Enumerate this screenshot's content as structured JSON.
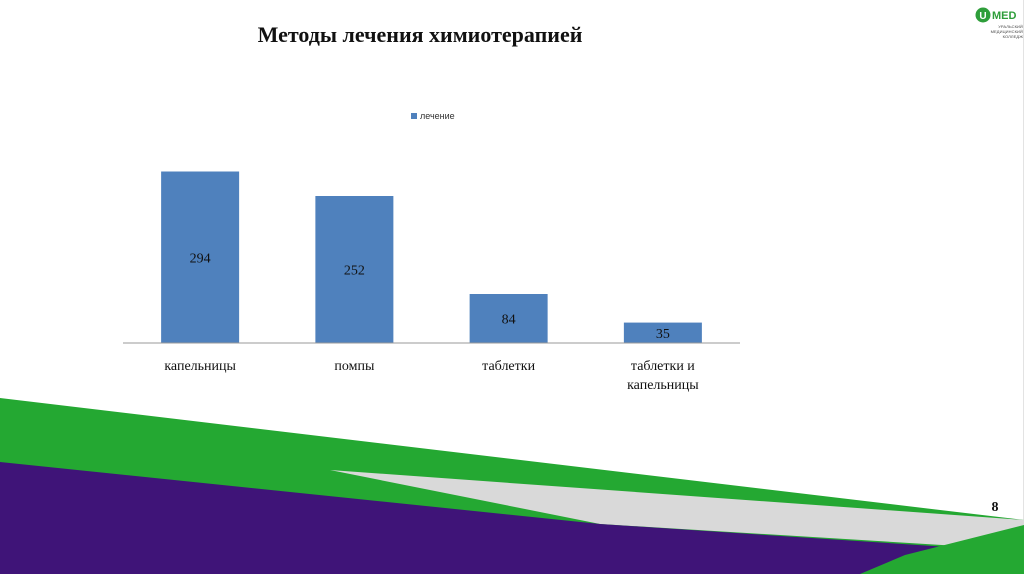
{
  "slide": {
    "title": "Методы лечения химиотерапией",
    "page_number": "8",
    "logo": {
      "brand": "U-MED",
      "subtitle_lines": [
        "УРАЛЬСКИЙ",
        "МЕДИЦИНСКИЙ",
        "КОЛЛЕДЖ"
      ]
    },
    "colors": {
      "bar": "#4f81bd",
      "green": "#24a832",
      "purple": "#3f1478",
      "grey": "#d9d9d9"
    }
  },
  "chart_data": {
    "type": "bar",
    "title": "",
    "xlabel": "",
    "ylabel": "",
    "legend": "top",
    "grid": false,
    "categories": [
      "капельницы",
      "помпы",
      "таблетки",
      "таблетки и капельницы"
    ],
    "series": [
      {
        "name": "лечение",
        "values": [
          294,
          252,
          84,
          35
        ]
      }
    ],
    "ylim": [
      0,
      300
    ]
  }
}
